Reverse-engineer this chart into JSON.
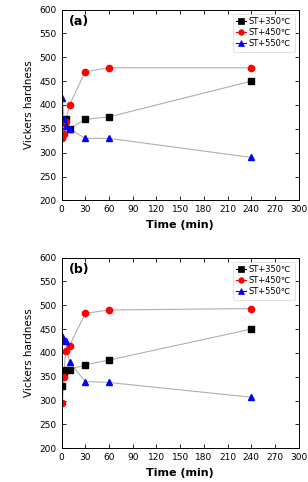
{
  "panel_a": {
    "label": "(a)",
    "series": {
      "ST+350℃": {
        "color": "black",
        "marker": "s",
        "x": [
          1,
          3,
          5,
          10,
          30,
          60,
          240
        ],
        "y": [
          340,
          365,
          370,
          350,
          370,
          375,
          450
        ]
      },
      "ST+450℃": {
        "color": "red",
        "marker": "o",
        "x": [
          1,
          3,
          5,
          10,
          30,
          60,
          240
        ],
        "y": [
          330,
          340,
          365,
          400,
          470,
          478,
          478
        ]
      },
      "ST+550℃": {
        "color": "blue",
        "marker": "^",
        "x": [
          1,
          3,
          5,
          10,
          30,
          60,
          240
        ],
        "y": [
          415,
          370,
          355,
          350,
          330,
          330,
          290
        ]
      }
    }
  },
  "panel_b": {
    "label": "(b)",
    "series": {
      "ST+350℃": {
        "color": "black",
        "marker": "s",
        "x": [
          1,
          3,
          5,
          10,
          30,
          60,
          240
        ],
        "y": [
          330,
          360,
          365,
          365,
          375,
          385,
          450
        ]
      },
      "ST+450℃": {
        "color": "red",
        "marker": "o",
        "x": [
          1,
          3,
          5,
          10,
          30,
          60,
          240
        ],
        "y": [
          295,
          350,
          405,
          415,
          483,
          490,
          493
        ]
      },
      "ST+550℃": {
        "color": "blue",
        "marker": "^",
        "x": [
          1,
          3,
          5,
          10,
          30,
          60,
          240
        ],
        "y": [
          435,
          428,
          425,
          380,
          340,
          338,
          307
        ]
      }
    }
  },
  "ylim": [
    200,
    600
  ],
  "yticks": [
    200,
    250,
    300,
    350,
    400,
    450,
    500,
    550,
    600
  ],
  "xlim": [
    0,
    300
  ],
  "xticks": [
    0,
    30,
    60,
    90,
    120,
    150,
    180,
    210,
    240,
    270,
    300
  ],
  "xlabel": "Time (min)",
  "ylabel": "Vickers hardness",
  "line_color": "#b0b0b0",
  "markersize": 4.5
}
